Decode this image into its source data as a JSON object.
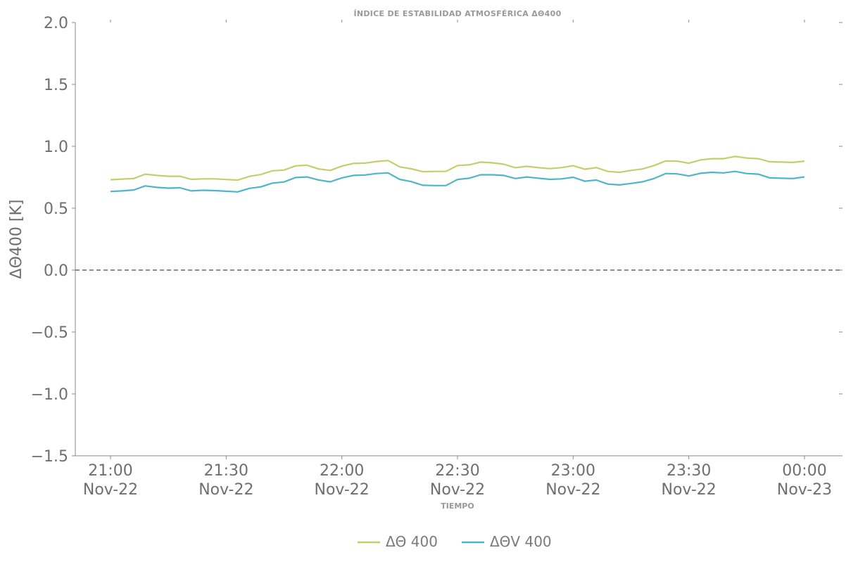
{
  "chart_data": {
    "type": "line",
    "title": "ÍNDICE DE ESTABILIDAD ATMOSFÉRICA ΔΘ400",
    "xlabel": "TIEMPO",
    "ylabel": "ΔΘ400 [K]",
    "ylim": [
      -1.5,
      2.0
    ],
    "yticks": [
      "−1.5",
      "−1.0",
      "−0.5",
      "0.0",
      "0.5",
      "1.0",
      "1.5",
      "2.0"
    ],
    "ytick_values": [
      -1.5,
      -1.0,
      -0.5,
      0.0,
      0.5,
      1.0,
      1.5,
      2.0
    ],
    "x_start": "21:00 Nov-22",
    "x_end": "00:00 Nov-23",
    "xticks": [
      {
        "time": "21:00",
        "date": "Nov-22",
        "minutes": 0
      },
      {
        "time": "21:30",
        "date": "Nov-22",
        "minutes": 30
      },
      {
        "time": "22:00",
        "date": "Nov-22",
        "minutes": 60
      },
      {
        "time": "22:30",
        "date": "Nov-22",
        "minutes": 90
      },
      {
        "time": "23:00",
        "date": "Nov-22",
        "minutes": 120
      },
      {
        "time": "23:30",
        "date": "Nov-22",
        "minutes": 150
      },
      {
        "time": "00:00",
        "date": "Nov-23",
        "minutes": 180
      }
    ],
    "x_minutes": [
      0,
      3,
      6,
      9,
      12,
      15,
      18,
      21,
      24,
      27,
      30,
      33,
      36,
      39,
      42,
      45,
      48,
      51,
      54,
      57,
      60,
      63,
      66,
      69,
      72,
      75,
      78,
      81,
      84,
      87,
      90,
      93,
      96,
      99,
      102,
      105,
      108,
      111,
      114,
      117,
      120,
      123,
      126,
      129,
      132,
      135,
      138,
      141,
      144,
      147,
      150,
      153,
      156,
      159,
      162,
      165,
      168,
      171,
      174,
      177,
      180
    ],
    "series": [
      {
        "name": "ΔΘ 400",
        "color": "#c8cc6a",
        "values": [
          0.73,
          0.735,
          0.74,
          0.775,
          0.765,
          0.758,
          0.758,
          0.733,
          0.737,
          0.737,
          0.732,
          0.727,
          0.757,
          0.772,
          0.802,
          0.808,
          0.842,
          0.847,
          0.817,
          0.805,
          0.84,
          0.862,
          0.864,
          0.877,
          0.885,
          0.834,
          0.818,
          0.795,
          0.797,
          0.797,
          0.845,
          0.85,
          0.872,
          0.867,
          0.855,
          0.827,
          0.838,
          0.827,
          0.82,
          0.828,
          0.843,
          0.815,
          0.828,
          0.797,
          0.79,
          0.805,
          0.817,
          0.845,
          0.882,
          0.88,
          0.863,
          0.89,
          0.9,
          0.9,
          0.918,
          0.905,
          0.9,
          0.875,
          0.873,
          0.87,
          0.88
        ]
      },
      {
        "name": "ΔΘV 400",
        "color": "#4db6c8",
        "values": [
          0.635,
          0.64,
          0.647,
          0.68,
          0.668,
          0.662,
          0.665,
          0.64,
          0.645,
          0.642,
          0.637,
          0.632,
          0.66,
          0.672,
          0.703,
          0.712,
          0.748,
          0.752,
          0.728,
          0.713,
          0.745,
          0.765,
          0.768,
          0.78,
          0.785,
          0.733,
          0.715,
          0.685,
          0.683,
          0.683,
          0.732,
          0.742,
          0.77,
          0.77,
          0.765,
          0.74,
          0.752,
          0.742,
          0.733,
          0.737,
          0.75,
          0.718,
          0.727,
          0.695,
          0.688,
          0.7,
          0.713,
          0.74,
          0.78,
          0.777,
          0.76,
          0.782,
          0.79,
          0.785,
          0.797,
          0.78,
          0.775,
          0.745,
          0.742,
          0.74,
          0.753
        ]
      }
    ],
    "reference_line": {
      "y": 0.0,
      "style": "dashed",
      "color": "#666666"
    },
    "grid": false,
    "legend_position": "bottom-center"
  }
}
